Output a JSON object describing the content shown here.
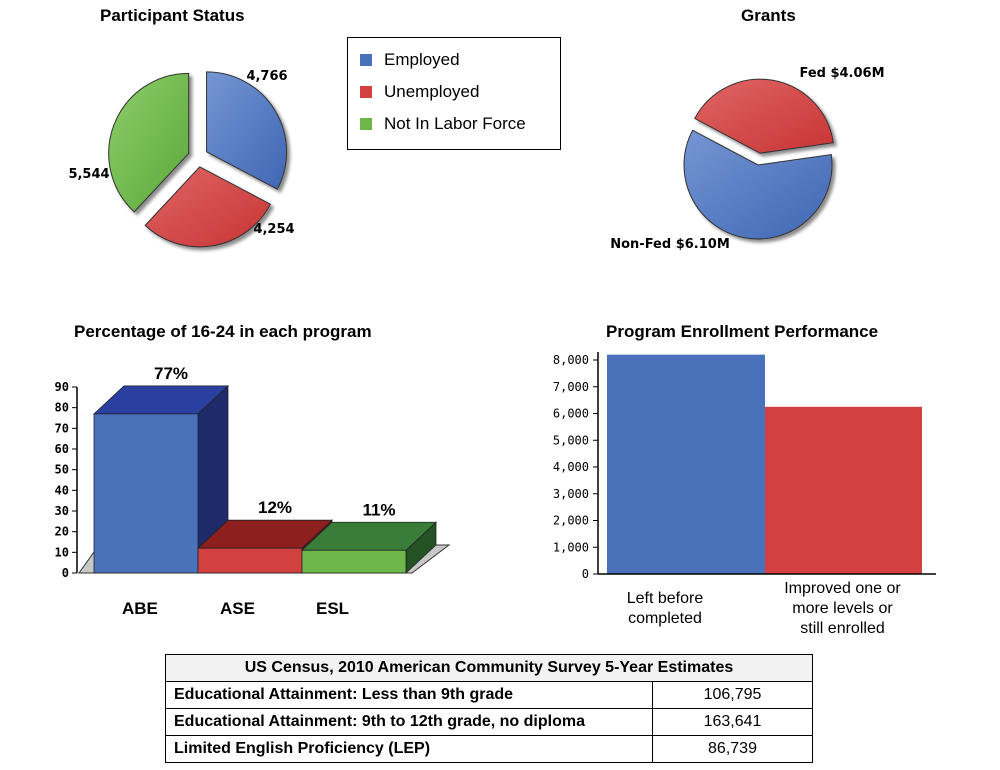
{
  "titles": {
    "participant_status": "Participant Status",
    "grants": "Grants",
    "pct_16_24": "Percentage of 16-24 in each program",
    "enrollment": "Program Enrollment Performance"
  },
  "legend": [
    {
      "label": "Employed",
      "color": "#4a72bb"
    },
    {
      "label": "Unemployed",
      "color": "#d24040"
    },
    {
      "label": "Not In Labor Force",
      "color": "#6fb74a"
    }
  ],
  "chart_data": [
    {
      "type": "pie",
      "title": "Participant Status",
      "slices": [
        {
          "label": "Employed",
          "value": 4766,
          "text": "4,766",
          "color": "#4a72bb"
        },
        {
          "label": "Unemployed",
          "value": 4254,
          "text": "4,254",
          "color": "#d24040"
        },
        {
          "label": "Not In Labor Force",
          "value": 5544,
          "text": "5,544",
          "color": "#6fb74a"
        }
      ]
    },
    {
      "type": "pie",
      "title": "Grants",
      "slices": [
        {
          "label": "Fed",
          "value": 4.06,
          "text": "Fed $4.06M",
          "color": "#d24f4f"
        },
        {
          "label": "Non-Fed",
          "value": 6.1,
          "text": "Non-Fed $6.10M",
          "color": "#4a72bb"
        }
      ]
    },
    {
      "type": "bar",
      "title": "Percentage of 16-24 in each program",
      "categories": [
        "ABE",
        "ASE",
        "ESL"
      ],
      "values": [
        77,
        12,
        11
      ],
      "labels": [
        "77%",
        "12%",
        "11%"
      ],
      "colors": [
        "#4a72bb",
        "#d24040",
        "#6fb74a"
      ],
      "ylim": [
        0,
        90
      ],
      "yticks": [
        0,
        10,
        20,
        30,
        40,
        50,
        60,
        70,
        80,
        90
      ]
    },
    {
      "type": "bar",
      "title": "Program Enrollment Performance",
      "categories": [
        "Left before completed",
        "Improved one or more levels or still enrolled"
      ],
      "values": [
        8200,
        6250
      ],
      "colors": [
        "#4a72bb",
        "#d24040"
      ],
      "ylim": [
        0,
        8000
      ],
      "yticks": [
        0,
        1000,
        2000,
        3000,
        4000,
        5000,
        6000,
        7000,
        8000
      ],
      "ytick_labels": [
        "0",
        "1,000",
        "2,000",
        "3,000",
        "4,000",
        "5,000",
        "6,000",
        "7,000",
        "8,000"
      ]
    }
  ],
  "xcats_enrollment": [
    "Left before\ncompleted",
    "Improved one or\nmore levels or\nstill enrolled"
  ],
  "census": {
    "header": "US Census, 2010 American Community Survey 5-Year Estimates",
    "rows": [
      {
        "label": "Educational Attainment: Less than 9th grade",
        "value": "106,795"
      },
      {
        "label": "Educational Attainment: 9th to 12th grade, no diploma",
        "value": "163,641"
      },
      {
        "label": "Limited English Proficiency (LEP)",
        "value": "86,739"
      }
    ]
  }
}
